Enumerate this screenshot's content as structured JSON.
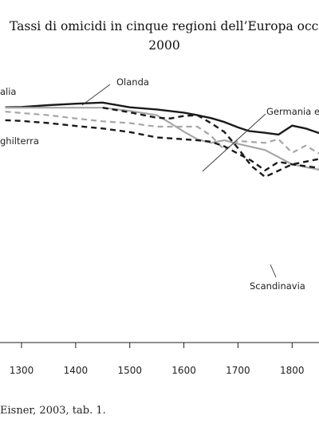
{
  "chart_data": {
    "type": "line",
    "title": "Tassi di omicidi in cinque regioni dell’Europa occid",
    "subtitle": "2000",
    "source": "Eisner, 2003, tab. 1.",
    "xlabel": "",
    "ylabel": "",
    "x_ticks": [
      1300,
      1400,
      1500,
      1600,
      1700,
      1800
    ],
    "grid": false,
    "legend": "none",
    "series": [
      {
        "name": "alia",
        "style": "solid",
        "color": "#1a1a1a",
        "points": [
          [
            1270,
            34
          ],
          [
            1300,
            35
          ],
          [
            1350,
            40
          ],
          [
            1400,
            44
          ],
          [
            1450,
            47
          ],
          [
            1500,
            34
          ],
          [
            1550,
            28
          ],
          [
            1600,
            19
          ],
          [
            1625,
            12
          ],
          [
            1650,
            4
          ],
          [
            1675,
            -7
          ],
          [
            1700,
            -22
          ],
          [
            1720,
            -32
          ],
          [
            1750,
            -37
          ],
          [
            1775,
            -42
          ],
          [
            1800,
            -17
          ],
          [
            1825,
            -25
          ],
          [
            1850,
            -38
          ]
        ]
      },
      {
        "name": "Olanda",
        "style": "solid",
        "color": "#a6a6a6",
        "points": [
          [
            1270,
            33
          ],
          [
            1300,
            33
          ],
          [
            1350,
            33
          ],
          [
            1400,
            33
          ],
          [
            1450,
            33
          ],
          [
            1500,
            24
          ],
          [
            1550,
            12
          ],
          [
            1575,
            -10
          ],
          [
            1600,
            -34
          ],
          [
            1625,
            -55
          ],
          [
            1650,
            -65
          ],
          [
            1675,
            -58
          ],
          [
            1700,
            -68
          ],
          [
            1750,
            -85
          ],
          [
            1800,
            -125
          ],
          [
            1850,
            -140
          ]
        ]
      },
      {
        "name": "Germania e",
        "style": "dashed",
        "color": "#a6a6a6",
        "points": [
          [
            1270,
            22
          ],
          [
            1300,
            18
          ],
          [
            1350,
            12
          ],
          [
            1400,
            3
          ],
          [
            1450,
            -5
          ],
          [
            1500,
            -10
          ],
          [
            1550,
            -20
          ],
          [
            1600,
            -20
          ],
          [
            1625,
            -20
          ],
          [
            1650,
            -45
          ],
          [
            1675,
            -85
          ],
          [
            1700,
            -60
          ],
          [
            1750,
            -65
          ],
          [
            1775,
            -55
          ],
          [
            1800,
            -93
          ],
          [
            1825,
            -73
          ],
          [
            1850,
            -95
          ]
        ]
      },
      {
        "name": "ghilterra",
        "style": "dashed",
        "color": "#1a1a1a",
        "points": [
          [
            1270,
            -2
          ],
          [
            1300,
            -4
          ],
          [
            1350,
            -10
          ],
          [
            1400,
            -18
          ],
          [
            1450,
            -25
          ],
          [
            1500,
            -35
          ],
          [
            1550,
            -50
          ],
          [
            1600,
            -55
          ],
          [
            1625,
            -58
          ],
          [
            1650,
            -62
          ],
          [
            1675,
            -75
          ],
          [
            1700,
            -95
          ],
          [
            1725,
            -115
          ],
          [
            1750,
            -142
          ],
          [
            1775,
            -118
          ],
          [
            1800,
            -125
          ],
          [
            1850,
            -135
          ]
        ]
      },
      {
        "name": "Scandinavia",
        "style": "dashed",
        "color": "#1a1a1a",
        "points": [
          [
            1450,
            33
          ],
          [
            1500,
            20
          ],
          [
            1550,
            5
          ],
          [
            1575,
            3
          ],
          [
            1600,
            10
          ],
          [
            1625,
            12
          ],
          [
            1650,
            -10
          ],
          [
            1675,
            -35
          ],
          [
            1700,
            -80
          ],
          [
            1725,
            -130
          ],
          [
            1750,
            -160
          ],
          [
            1800,
            -125
          ],
          [
            1850,
            -110
          ]
        ]
      }
    ],
    "label_texts": {
      "olanda": "Olanda",
      "italia": "alia",
      "germania": "Germania e",
      "inghilterra": "ghilterra",
      "scandinavia": "Scandinavia"
    }
  }
}
